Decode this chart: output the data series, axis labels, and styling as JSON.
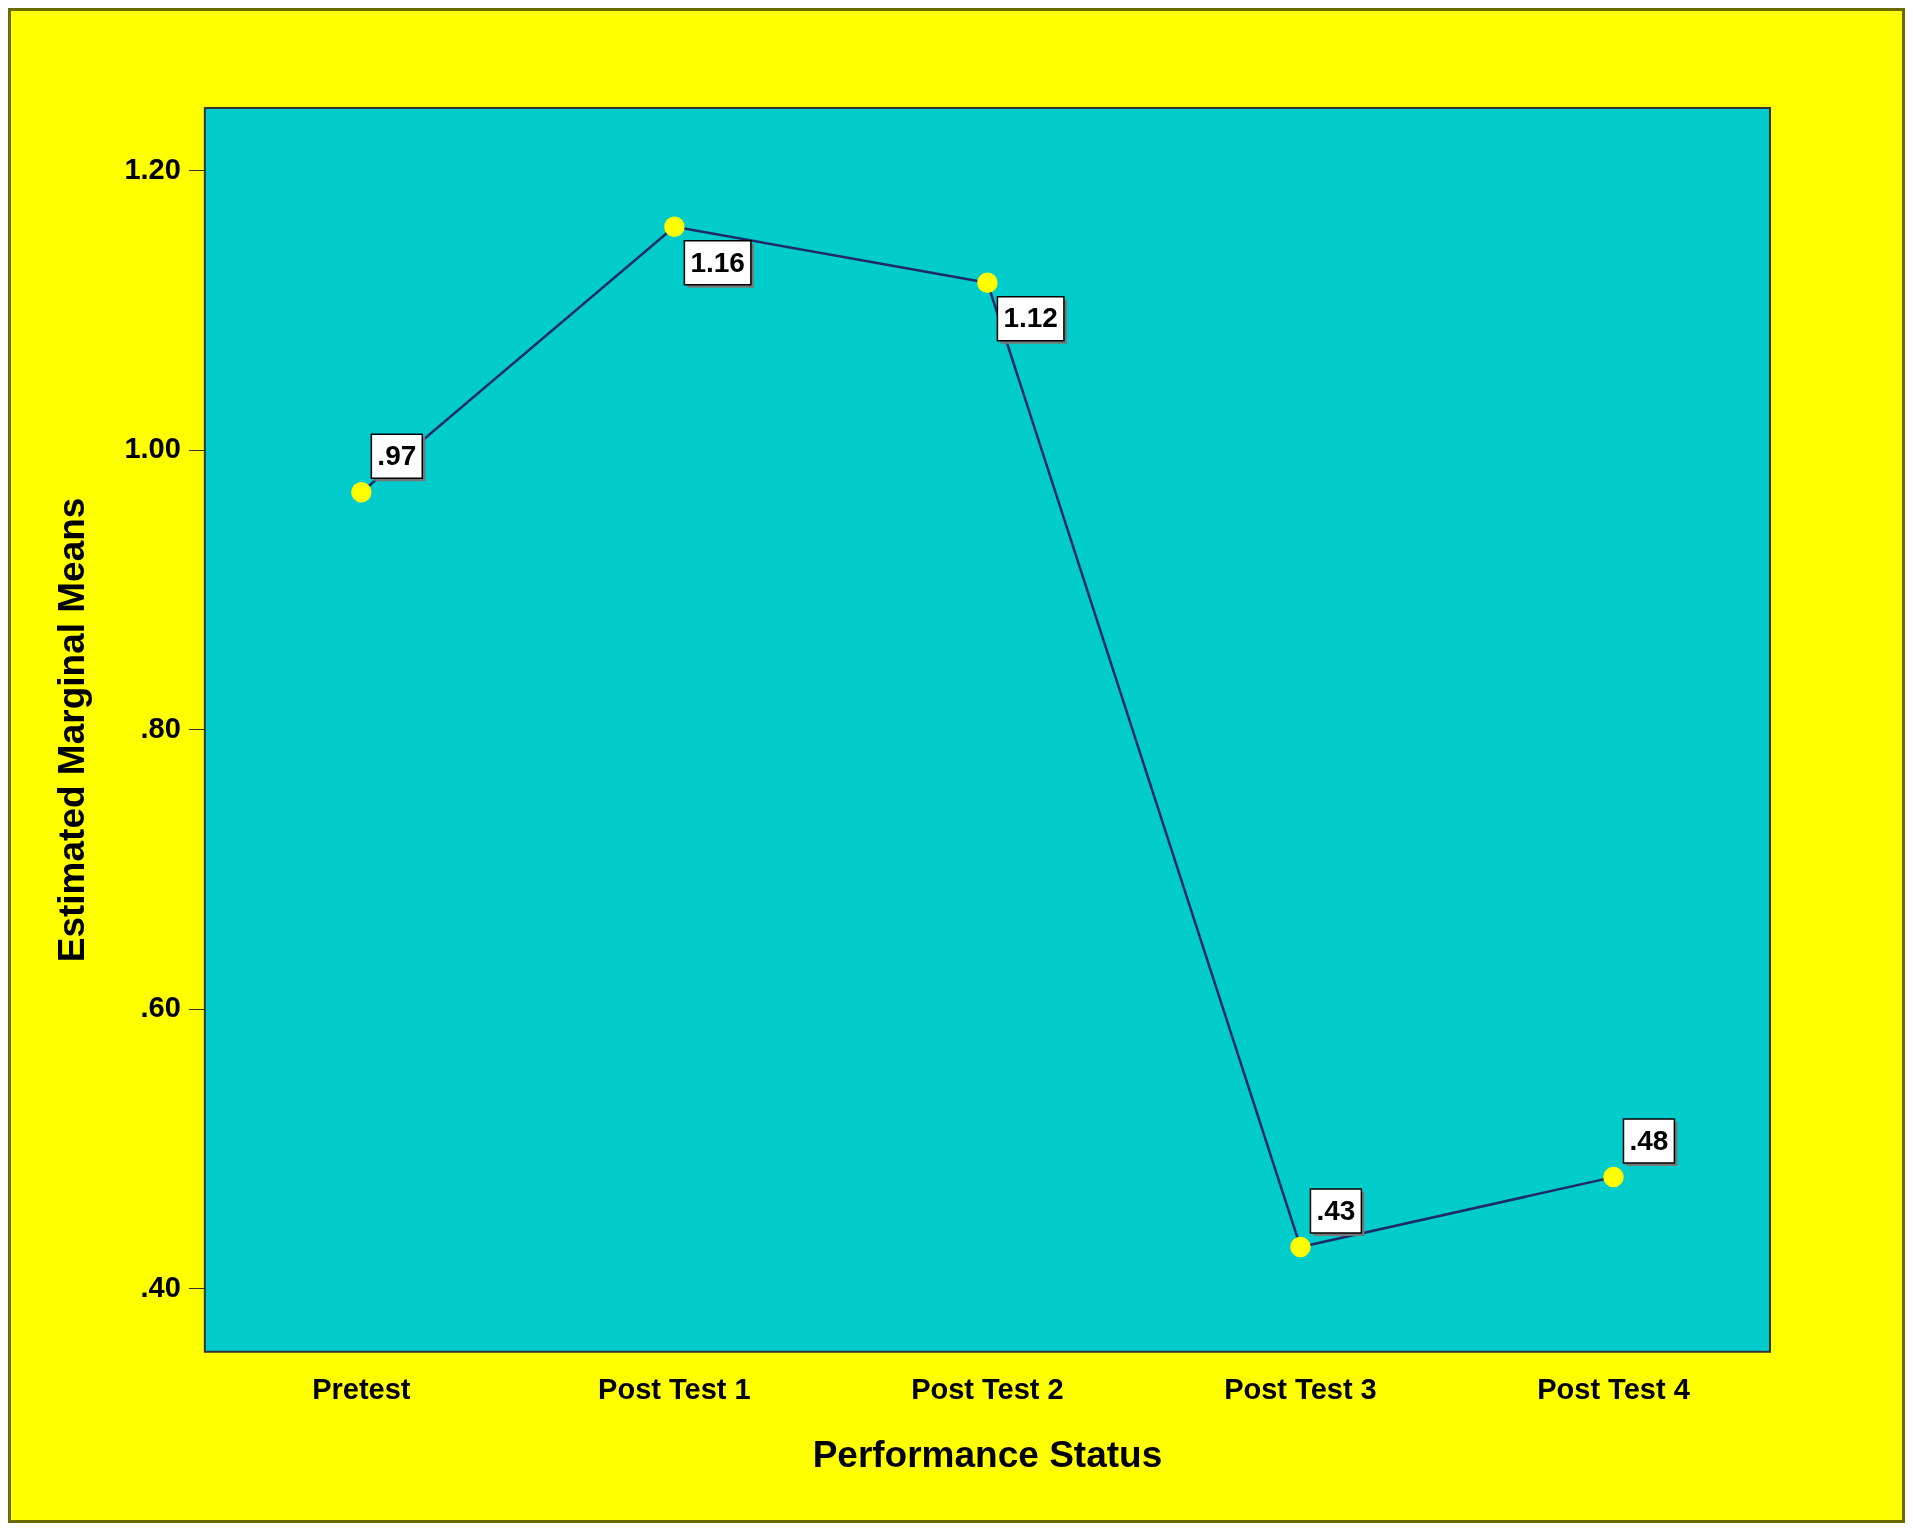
{
  "chart_data": {
    "type": "line",
    "xlabel": "Performance Status",
    "ylabel": "Estimated Marginal Means",
    "categories": [
      "Pretest",
      "Post Test 1",
      "Post Test 2",
      "Post Test 3",
      "Post Test 4"
    ],
    "series": [
      {
        "color": "#1f2a6b",
        "values": [
          0.97,
          1.16,
          1.12,
          0.43,
          0.48
        ],
        "value_labels": [
          ".97",
          "1.16",
          "1.12",
          ".43",
          ".48"
        ]
      }
    ],
    "ylim": [
      0.355,
      1.245
    ],
    "yticks": [
      {
        "value": 0.4,
        "label": ".40"
      },
      {
        "value": 0.6,
        "label": ".60"
      },
      {
        "value": 0.8,
        "label": ".80"
      },
      {
        "value": 1.0,
        "label": "1.00"
      },
      {
        "value": 1.2,
        "label": "1.20"
      }
    ],
    "grid": false,
    "legend": false,
    "marker": "circle",
    "line_style": "solid"
  }
}
